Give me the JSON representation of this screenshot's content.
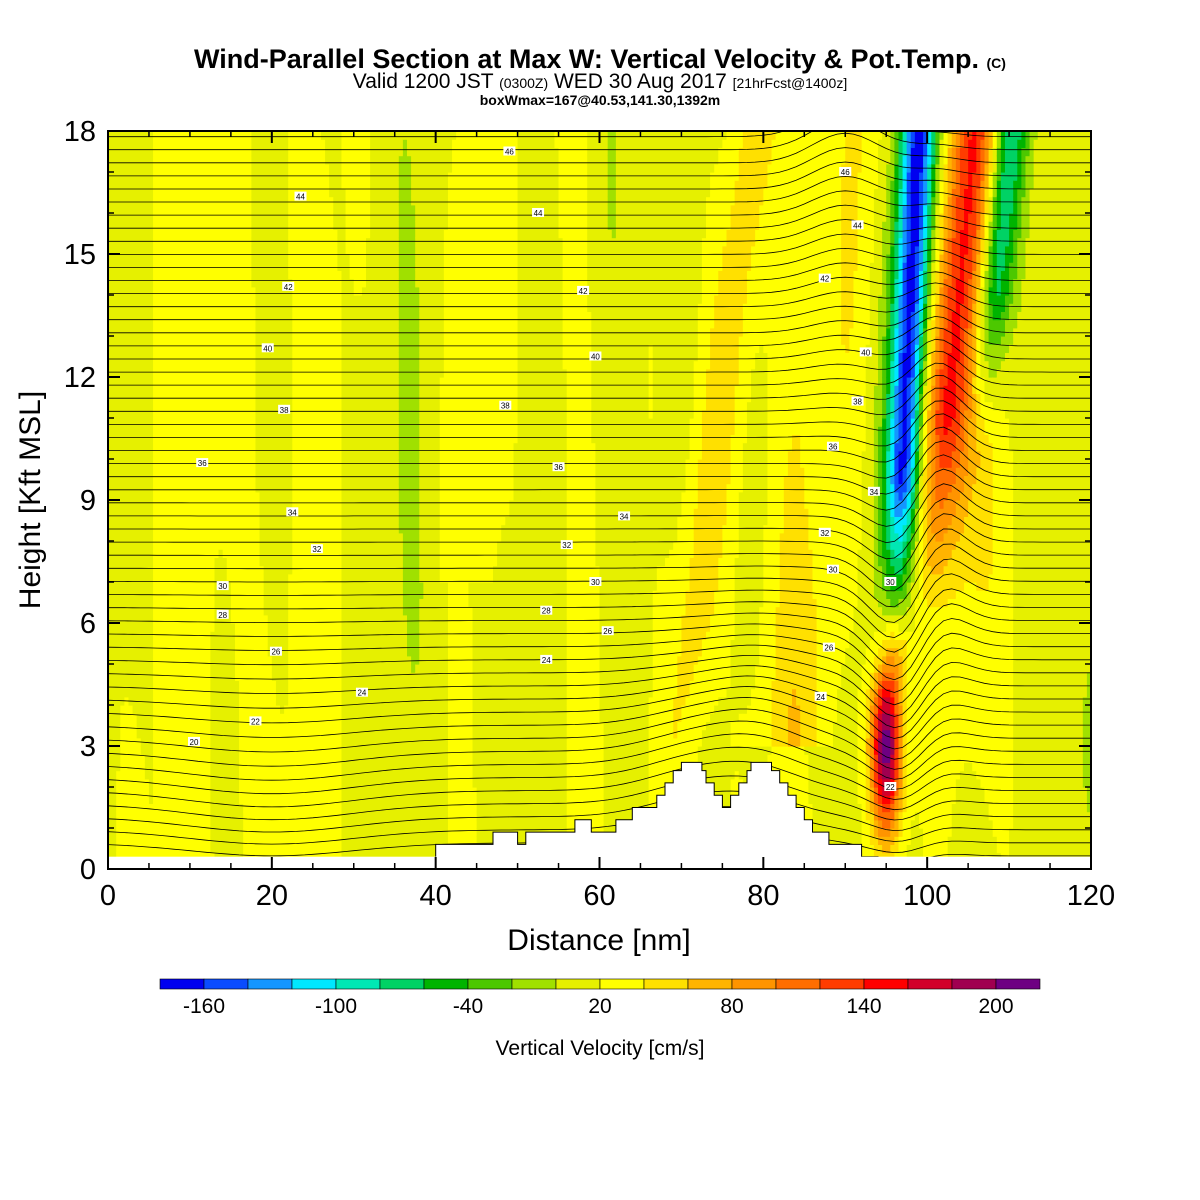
{
  "title": {
    "main": "Wind-Parallel Section at Max W: Vertical Velocity & Pot.Temp.",
    "copyright": "(C)",
    "valid_prefix": "Valid 1200 JST",
    "valid_utc": "(0300Z)",
    "valid_date": "WED 30 Aug 2017",
    "forecast": "[21hrFcst@1400z]",
    "box_info": "boxWmax=167@40.53,141.30,1392m"
  },
  "chart_data": {
    "type": "heatmap",
    "xlabel": "Distance [nm]",
    "ylabel": "Height [Kft MSL]",
    "xlim": [
      0,
      120
    ],
    "ylim": [
      0,
      18
    ],
    "xticks": [
      0,
      20,
      40,
      60,
      80,
      100,
      120
    ],
    "yticks": [
      0,
      3,
      6,
      9,
      12,
      15,
      18
    ],
    "colorbar": {
      "label": "Vertical Velocity [cm/s]",
      "tick_labels": [
        "-160",
        "-100",
        "-40",
        "20",
        "80",
        "140",
        "200"
      ],
      "levels": [
        -180,
        -160,
        -140,
        -120,
        -100,
        -80,
        -60,
        -40,
        -20,
        0,
        20,
        40,
        60,
        80,
        100,
        120,
        140,
        160,
        180,
        200,
        220
      ],
      "colors": [
        "#0000f0",
        "#0a4cff",
        "#1496ff",
        "#00e8ff",
        "#00e8b4",
        "#00d264",
        "#00b400",
        "#4cc800",
        "#a0e000",
        "#e6f000",
        "#ffff00",
        "#ffe000",
        "#ffb400",
        "#ff9400",
        "#ff6e00",
        "#ff3c00",
        "#ff0000",
        "#d2002a",
        "#a00050",
        "#6e0082"
      ]
    },
    "theta_labels": [
      {
        "x": 49,
        "h": 17.5,
        "label": "46"
      },
      {
        "x": 23.5,
        "h": 16.4,
        "label": "44"
      },
      {
        "x": 52.5,
        "h": 16.0,
        "label": "44"
      },
      {
        "x": 90,
        "h": 17.0,
        "label": "46"
      },
      {
        "x": 91.5,
        "h": 15.7,
        "label": "44"
      },
      {
        "x": 22,
        "h": 14.2,
        "label": "42"
      },
      {
        "x": 58,
        "h": 14.1,
        "label": "42"
      },
      {
        "x": 87.5,
        "h": 14.4,
        "label": "42"
      },
      {
        "x": 19.5,
        "h": 12.7,
        "label": "40"
      },
      {
        "x": 59.5,
        "h": 12.5,
        "label": "40"
      },
      {
        "x": 92.5,
        "h": 12.6,
        "label": "40"
      },
      {
        "x": 21.5,
        "h": 11.2,
        "label": "38"
      },
      {
        "x": 48.5,
        "h": 11.3,
        "label": "38"
      },
      {
        "x": 91.5,
        "h": 11.4,
        "label": "38"
      },
      {
        "x": 11.5,
        "h": 9.9,
        "label": "36"
      },
      {
        "x": 55,
        "h": 9.8,
        "label": "36"
      },
      {
        "x": 88.5,
        "h": 10.3,
        "label": "36"
      },
      {
        "x": 22.5,
        "h": 8.7,
        "label": "34"
      },
      {
        "x": 63,
        "h": 8.6,
        "label": "34"
      },
      {
        "x": 93.5,
        "h": 9.2,
        "label": "34"
      },
      {
        "x": 25.5,
        "h": 7.8,
        "label": "32"
      },
      {
        "x": 56,
        "h": 7.9,
        "label": "32"
      },
      {
        "x": 87.5,
        "h": 8.2,
        "label": "32"
      },
      {
        "x": 14,
        "h": 6.9,
        "label": "30"
      },
      {
        "x": 59.5,
        "h": 7.0,
        "label": "30"
      },
      {
        "x": 88.5,
        "h": 7.3,
        "label": "30"
      },
      {
        "x": 95.5,
        "h": 7.0,
        "label": "30"
      },
      {
        "x": 14,
        "h": 6.2,
        "label": "28"
      },
      {
        "x": 53.5,
        "h": 6.3,
        "label": "28"
      },
      {
        "x": 61,
        "h": 5.8,
        "label": "26"
      },
      {
        "x": 20.5,
        "h": 5.3,
        "label": "26"
      },
      {
        "x": 88,
        "h": 5.4,
        "label": "26"
      },
      {
        "x": 53.5,
        "h": 5.1,
        "label": "24"
      },
      {
        "x": 31,
        "h": 4.3,
        "label": "24"
      },
      {
        "x": 87,
        "h": 4.2,
        "label": "24"
      },
      {
        "x": 18,
        "h": 3.6,
        "label": "22"
      },
      {
        "x": 10.5,
        "h": 3.1,
        "label": "20"
      },
      {
        "x": 95.5,
        "h": 2.0,
        "label": "22"
      }
    ]
  }
}
